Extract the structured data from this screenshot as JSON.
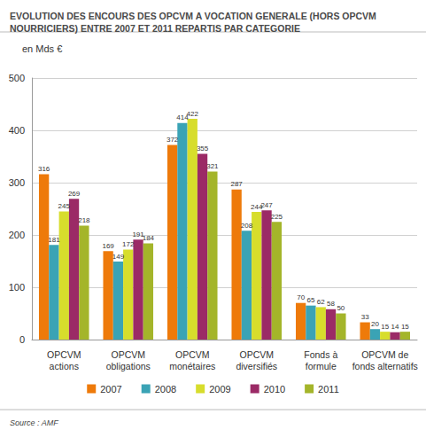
{
  "chart_data": {
    "type": "bar",
    "title": "EVOLUTION DES ENCOURS DES OPCVM A VOCATION GENERALE (HORS OPCVM\nNOURRICIERS) ENTRE 2007 ET 2011 REPARTIS PAR CATEGORIE",
    "subtitle": "en Mds €",
    "source": "Source : AMF",
    "categories": [
      "OPCVM\nactions",
      "OPCVM\nobligations",
      "OPCVM\nmonétaires",
      "OPCVM\ndiversifiés",
      "Fonds à\nformule",
      "OPCVM de\nfonds alternatifs"
    ],
    "series": [
      {
        "name": "2007",
        "color": "#ee7a0a",
        "values": [
          316,
          169,
          372,
          287,
          70,
          33
        ]
      },
      {
        "name": "2008",
        "color": "#3aa3b5",
        "values": [
          181,
          149,
          414,
          208,
          65,
          20
        ]
      },
      {
        "name": "2009",
        "color": "#d7dd2c",
        "values": [
          245,
          172,
          422,
          244,
          62,
          15
        ]
      },
      {
        "name": "2010",
        "color": "#9b2a66",
        "values": [
          269,
          191,
          355,
          247,
          58,
          14
        ]
      },
      {
        "name": "2011",
        "color": "#a4b52a",
        "values": [
          218,
          184,
          321,
          225,
          50,
          15
        ]
      }
    ],
    "ylim": [
      0,
      500
    ],
    "yticks": [
      0,
      100,
      200,
      300,
      400,
      500
    ],
    "grid": true,
    "data_labels": true,
    "legend": "bottom"
  }
}
